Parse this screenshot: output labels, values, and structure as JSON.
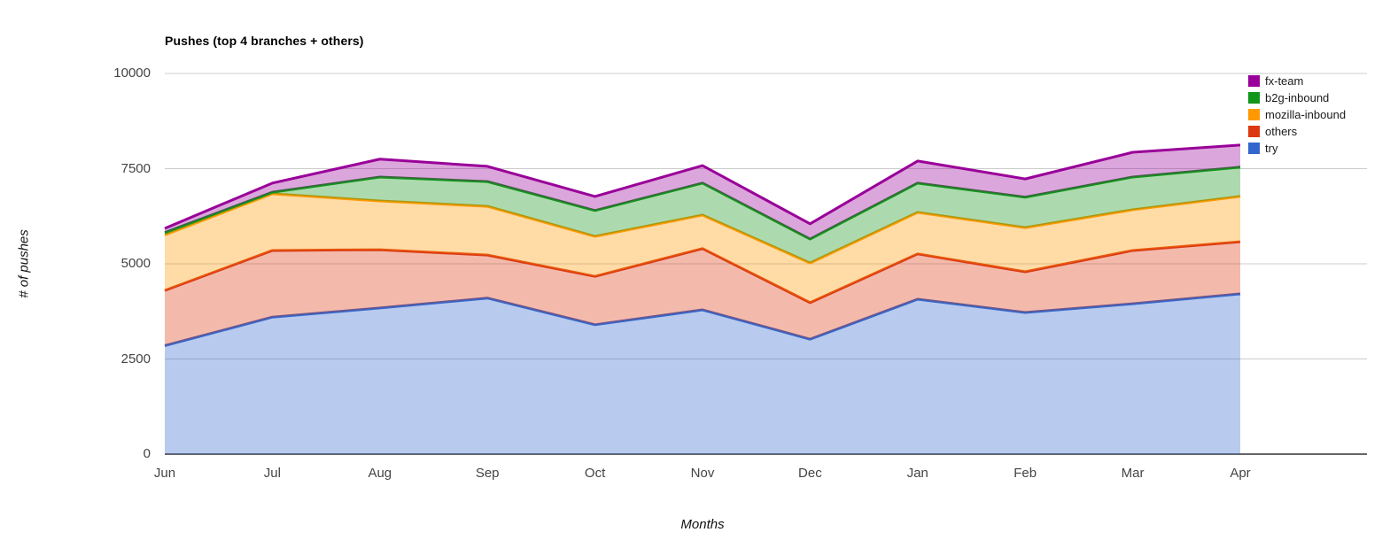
{
  "chart": {
    "title": "Pushes (top 4 branches + others)"
  },
  "chart_data": {
    "type": "area",
    "stacked": true,
    "title": "Pushes (top 4 branches + others)",
    "xlabel": "Months",
    "ylabel": "# of pushes",
    "categories": [
      "Jun",
      "Jul",
      "Aug",
      "Sep",
      "Oct",
      "Nov",
      "Dec",
      "Jan",
      "Feb",
      "Mar",
      "Apr"
    ],
    "ylim": [
      0,
      10000
    ],
    "yticks": [
      0,
      2500,
      5000,
      7500,
      10000
    ],
    "grid": true,
    "legend_position": "right",
    "fill_opacity": 0.35,
    "line_width": 3,
    "series": [
      {
        "name": "try",
        "color": "#3366cc",
        "values": [
          2850,
          3600,
          3840,
          4100,
          3400,
          3790,
          3020,
          4070,
          3720,
          3950,
          4210
        ]
      },
      {
        "name": "others",
        "color": "#dc3912",
        "values": [
          1450,
          1750,
          1530,
          1130,
          1270,
          1610,
          960,
          1190,
          1070,
          1400,
          1370
        ]
      },
      {
        "name": "mozilla-inbound",
        "color": "#ff9900",
        "values": [
          1460,
          1490,
          1280,
          1280,
          1050,
          880,
          1040,
          1090,
          1160,
          1070,
          1190
        ]
      },
      {
        "name": "b2g-inbound",
        "color": "#109618",
        "values": [
          60,
          40,
          630,
          650,
          680,
          840,
          630,
          770,
          800,
          860,
          770
        ]
      },
      {
        "name": "fx-team",
        "color": "#990099",
        "values": [
          110,
          240,
          470,
          400,
          370,
          460,
          400,
          580,
          480,
          650,
          580
        ]
      }
    ],
    "stacked_totals": [
      5930,
      7120,
      7750,
      7560,
      6770,
      7580,
      6050,
      7700,
      7230,
      7930,
      8120
    ]
  },
  "legend": {
    "items": [
      {
        "label": "fx-team",
        "color": "#990099"
      },
      {
        "label": "b2g-inbound",
        "color": "#109618"
      },
      {
        "label": "mozilla-inbound",
        "color": "#ff9900"
      },
      {
        "label": "others",
        "color": "#dc3912"
      },
      {
        "label": "try",
        "color": "#3366cc"
      }
    ]
  },
  "style": {
    "gridline_color": "#cccccc",
    "baseline_color": "#666666",
    "tick_label_color": "#444444",
    "background": "#ffffff"
  }
}
